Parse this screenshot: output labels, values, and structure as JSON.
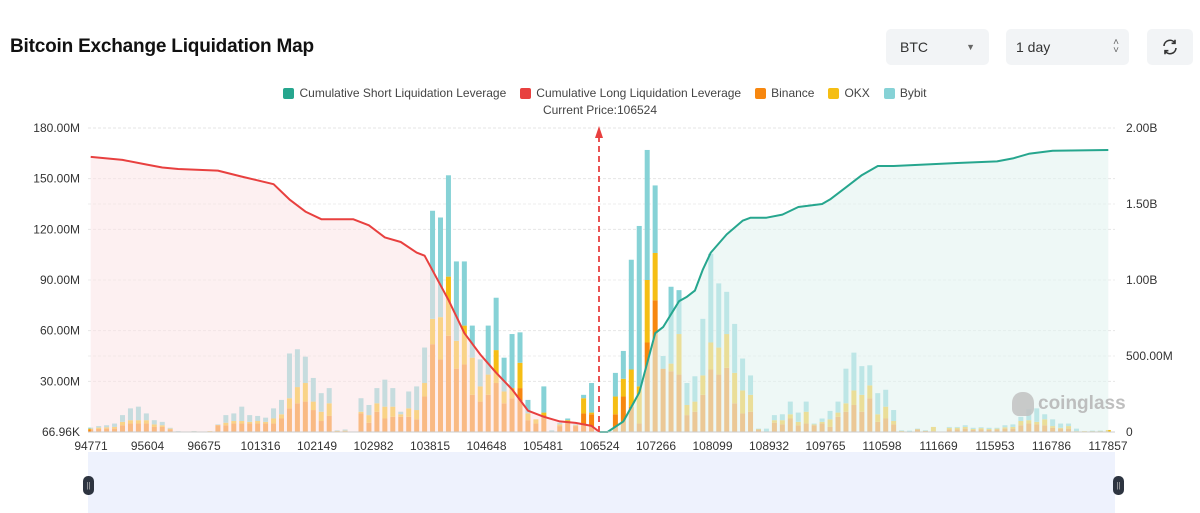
{
  "header": {
    "title": "Bitcoin Exchange Liquidation Map",
    "coin_select": "BTC",
    "range_select": "1 day",
    "refresh_icon": "refresh-icon"
  },
  "colors": {
    "short_line": "#26a68e",
    "long_line": "#e8403f",
    "binance": "#f7870f",
    "okx": "#f5be14",
    "bybit": "#86d2d6",
    "long_fill": "#fbe3e6",
    "short_fill": "#e3f4f0"
  },
  "watermark": "coinglass",
  "chart_data": {
    "type": "bar",
    "title": "Bitcoin Exchange Liquidation Map",
    "legend": [
      "Cumulative Short Liquidation Leverage",
      "Cumulative Long Liquidation Leverage",
      "Binance",
      "OKX",
      "Bybit"
    ],
    "legend_placement": "top-center",
    "current_price_label": "Current Price:106524",
    "current_price_index": 64,
    "x_tick_labels": [
      "94771",
      "95604",
      "96675",
      "101316",
      "102149",
      "102982",
      "103815",
      "104648",
      "105481",
      "106524",
      "107266",
      "108099",
      "108932",
      "109765",
      "110598",
      "111669",
      "115953",
      "116786",
      "117857"
    ],
    "y_left_ticks": [
      "180.00M",
      "150.00M",
      "120.00M",
      "90.00M",
      "60.00M",
      "30.00M",
      "66.96K"
    ],
    "y_left_range_M": [
      0,
      180
    ],
    "y_right_ticks": [
      "2.00B",
      "1.50B",
      "1.00B",
      "500.00M",
      "0"
    ],
    "y_right_range_B": [
      0,
      2
    ],
    "bar_stack_order": [
      "Binance",
      "OKX",
      "Bybit"
    ],
    "bars_M": [
      [
        1.5,
        0.5,
        0.6
      ],
      [
        1.8,
        0.8,
        0.9
      ],
      [
        2,
        0.8,
        1.2
      ],
      [
        2,
        1,
        2
      ],
      [
        4,
        2,
        4
      ],
      [
        5,
        2,
        7
      ],
      [
        5,
        2,
        8
      ],
      [
        5,
        2,
        4
      ],
      [
        3,
        1.5,
        2.5
      ],
      [
        3,
        1,
        2
      ],
      [
        1.5,
        0.5,
        0.5
      ],
      [
        0.2,
        0.1,
        0.2
      ],
      [
        0.1,
        0.1,
        0.1
      ],
      [
        0.3,
        0.1,
        0.1
      ],
      [
        0.1,
        0.1,
        0.1
      ],
      [
        0.3,
        0.2,
        0
      ],
      [
        4,
        0.3,
        0.2
      ],
      [
        4,
        1.5,
        4.5
      ],
      [
        5,
        1.5,
        4.5
      ],
      [
        5,
        1.5,
        8.5
      ],
      [
        5,
        1,
        4
      ],
      [
        5,
        1.5,
        3
      ],
      [
        5,
        1,
        2.5
      ],
      [
        5,
        3,
        6
      ],
      [
        8,
        2.5,
        8.5
      ],
      [
        14,
        6,
        26.5
      ],
      [
        17,
        9.6,
        22.4
      ],
      [
        18,
        11,
        15.6
      ],
      [
        13,
        5,
        14
      ],
      [
        6.5,
        5.5,
        11
      ],
      [
        9.5,
        7.5,
        9
      ],
      [
        0.5,
        0.2,
        0.3
      ],
      [
        0.5,
        0.3,
        0.7
      ],
      [
        0.2,
        0.1,
        0
      ],
      [
        11,
        1,
        8
      ],
      [
        5.5,
        4.5,
        6
      ],
      [
        12,
        5,
        9
      ],
      [
        8,
        7,
        16
      ],
      [
        9,
        6,
        11
      ],
      [
        9,
        1.5,
        1.5
      ],
      [
        9,
        5,
        10
      ],
      [
        7.5,
        5.5,
        14
      ],
      [
        21,
        8,
        21
      ],
      [
        52,
        15,
        64
      ],
      [
        43,
        25,
        59
      ],
      [
        57,
        35,
        60
      ],
      [
        37.5,
        16.5,
        47
      ],
      [
        40,
        23,
        38
      ],
      [
        22,
        22,
        19
      ],
      [
        18,
        9,
        16
      ],
      [
        22,
        12,
        29
      ],
      [
        29,
        19.5,
        31
      ],
      [
        17,
        7,
        20
      ],
      [
        20,
        6,
        32
      ],
      [
        26,
        15,
        18
      ],
      [
        7,
        4,
        8
      ],
      [
        5,
        2.5,
        0
      ],
      [
        10,
        1.5,
        15.5
      ],
      [
        0,
        0,
        1
      ],
      [
        3.5,
        1,
        1
      ],
      [
        5.5,
        1.5,
        1
      ],
      [
        3.5,
        0.5,
        0.5
      ],
      [
        11,
        9,
        2
      ],
      [
        10.5,
        1,
        17.5
      ],
      [
        0,
        0,
        0
      ],
      [
        0.3,
        0.1,
        0.1
      ],
      [
        10.5,
        10.5,
        14
      ],
      [
        21,
        10.5,
        16.5
      ],
      [
        15,
        22,
        65
      ],
      [
        5,
        22,
        95
      ],
      [
        53,
        37,
        77
      ],
      [
        78,
        28,
        40
      ],
      [
        37.5,
        0,
        7.5
      ],
      [
        36,
        4.5,
        45.5
      ],
      [
        34,
        24,
        26
      ],
      [
        10,
        6,
        13
      ],
      [
        12,
        6,
        15
      ],
      [
        22,
        11.5,
        33.5
      ],
      [
        37,
        16,
        52.5
      ],
      [
        34,
        16,
        38
      ],
      [
        38,
        20,
        25
      ],
      [
        17,
        18,
        29
      ],
      [
        11,
        13.6,
        18.9
      ],
      [
        12,
        10,
        11.5
      ],
      [
        1.5,
        0.3,
        0.2
      ],
      [
        0,
        0,
        2
      ],
      [
        5.5,
        1.5,
        3
      ],
      [
        4.5,
        2.5,
        3.5
      ],
      [
        8,
        2.5,
        7.5
      ],
      [
        4,
        2,
        5.5
      ],
      [
        5,
        7,
        6
      ],
      [
        4,
        0.5,
        0.5
      ],
      [
        5,
        1,
        2
      ],
      [
        3,
        4.5,
        5
      ],
      [
        9,
        2.5,
        6.5
      ],
      [
        12,
        5,
        20.5
      ],
      [
        16,
        8.6,
        22.4
      ],
      [
        12,
        10,
        17
      ],
      [
        20,
        7.6,
        11.9
      ],
      [
        6,
        4.5,
        12.5
      ],
      [
        8,
        7,
        10
      ],
      [
        4.5,
        2,
        6.5
      ],
      [
        0.5,
        0.2,
        0.3
      ],
      [
        0,
        0,
        0.8
      ],
      [
        1.5,
        0.3,
        0.2
      ],
      [
        0.7,
        0.2,
        0.1
      ],
      [
        0.5,
        2.5,
        0
      ],
      [
        0,
        0,
        0
      ],
      [
        1.5,
        1,
        0.5
      ],
      [
        1.5,
        1,
        0.5
      ],
      [
        2,
        1,
        1
      ],
      [
        1.2,
        0.6,
        0.7
      ],
      [
        1.5,
        0.8,
        0.5
      ],
      [
        1.2,
        0.6,
        0.7
      ],
      [
        1.5,
        0.5,
        0.5
      ],
      [
        2,
        0.8,
        1.2
      ],
      [
        2,
        1,
        1.5
      ],
      [
        4,
        2.5,
        2.5
      ],
      [
        5,
        2,
        6.5
      ],
      [
        4.5,
        1.5,
        8
      ],
      [
        4,
        3.5,
        3
      ],
      [
        2.5,
        1,
        4
      ],
      [
        2,
        0.5,
        2.5
      ],
      [
        2,
        1.5,
        1.5
      ],
      [
        0.3,
        0.2,
        1.5
      ],
      [
        0.2,
        0.3,
        0
      ],
      [
        0.3,
        0.3,
        0.2
      ],
      [
        0.3,
        0.4,
        0.1
      ],
      [
        0.3,
        0.9,
        0
      ]
    ],
    "long_cumulative_B": [
      [
        0,
        1.81
      ],
      [
        4,
        1.79
      ],
      [
        7,
        1.76
      ],
      [
        9,
        1.74
      ],
      [
        11,
        1.73
      ],
      [
        16,
        1.72
      ],
      [
        19,
        1.68
      ],
      [
        23,
        1.63
      ],
      [
        25,
        1.53
      ],
      [
        27,
        1.45
      ],
      [
        29,
        1.4
      ],
      [
        33,
        1.4
      ],
      [
        35,
        1.36
      ],
      [
        37,
        1.28
      ],
      [
        39,
        1.25
      ],
      [
        41,
        1.18
      ],
      [
        42,
        1.16
      ],
      [
        45,
        0.87
      ],
      [
        47,
        0.65
      ],
      [
        49,
        0.51
      ],
      [
        51,
        0.39
      ],
      [
        53,
        0.28
      ],
      [
        55,
        0.14
      ],
      [
        57,
        0.1
      ],
      [
        59,
        0.07
      ],
      [
        61,
        0.06
      ],
      [
        63,
        0.04
      ],
      [
        64,
        0
      ]
    ],
    "short_cumulative_B": [
      [
        64,
        0
      ],
      [
        65,
        0
      ],
      [
        67,
        0.07
      ],
      [
        69,
        0.26
      ],
      [
        71,
        0.65
      ],
      [
        72,
        0.69
      ],
      [
        74,
        0.86
      ],
      [
        75,
        0.89
      ],
      [
        76,
        0.93
      ],
      [
        77,
        1.07
      ],
      [
        78,
        1.18
      ],
      [
        80,
        1.3
      ],
      [
        82,
        1.39
      ],
      [
        83,
        1.41
      ],
      [
        85,
        1.41
      ],
      [
        87,
        1.43
      ],
      [
        89,
        1.48
      ],
      [
        92,
        1.5
      ],
      [
        93,
        1.53
      ],
      [
        95,
        1.61
      ],
      [
        97,
        1.69
      ],
      [
        99,
        1.75
      ],
      [
        101,
        1.75
      ],
      [
        109,
        1.77
      ],
      [
        114,
        1.78
      ],
      [
        116,
        1.8
      ],
      [
        118,
        1.83
      ],
      [
        121,
        1.85
      ],
      [
        128,
        1.855
      ]
    ]
  }
}
